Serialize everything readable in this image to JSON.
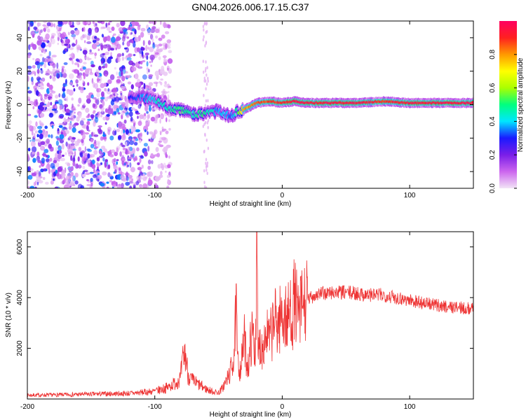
{
  "title": "GN04.2026.006.17.15.C37",
  "chart_data": [
    {
      "type": "heatmap",
      "title": "GN04.2026.006.17.15.C37",
      "xlabel": "Height of straight line (km)",
      "ylabel": "Frequency (Hz)",
      "xlim": [
        -200,
        150
      ],
      "ylim": [
        -50,
        50
      ],
      "xticks": [
        -200,
        -100,
        0,
        100
      ],
      "yticks": [
        -40,
        -20,
        0,
        20,
        40
      ],
      "colorbar": {
        "label": "Normalized spectral amplitude",
        "range": [
          0,
          1
        ],
        "ticks": [
          "0.0",
          "0.2",
          "0.4",
          "0.6",
          "0.8"
        ],
        "tick_values": [
          0,
          0.2,
          0.4,
          0.6,
          0.8
        ],
        "colors": [
          "#f2e4f6",
          "#cc66ee",
          "#7a1ee8",
          "#1a1aff",
          "#00e6ff",
          "#00ff7f",
          "#aaff00",
          "#ffff00",
          "#ff9900",
          "#ff2020",
          "#ff0060"
        ]
      },
      "ridge": {
        "x": [
          -120,
          -110,
          -100,
          -90,
          -80,
          -70,
          -60,
          -50,
          -45,
          -40,
          -35,
          -30,
          -20,
          -10,
          0,
          10,
          20,
          40,
          60,
          80,
          100,
          120,
          150
        ],
        "freq": [
          5,
          4,
          3,
          -2,
          -3,
          -6,
          -5,
          -4,
          -6,
          -7,
          -4,
          -3,
          1,
          2,
          1,
          2,
          1,
          1,
          1,
          2,
          1,
          1,
          1
        ],
        "amplitude": [
          0.25,
          0.35,
          0.4,
          0.45,
          0.5,
          0.45,
          0.5,
          0.35,
          0.4,
          0.35,
          0.5,
          0.8,
          0.85,
          0.9,
          0.9,
          0.95,
          0.95,
          0.95,
          0.95,
          0.9,
          0.95,
          0.95,
          0.95
        ]
      },
      "noise_region_x": [
        -200,
        -100
      ]
    },
    {
      "type": "line",
      "xlabel": "Height of straight line (km)",
      "ylabel": "SNR (10 * v/v)",
      "xlim": [
        -200,
        150
      ],
      "ylim": [
        0,
        6600
      ],
      "xticks": [
        -200,
        -100,
        0,
        100
      ],
      "yticks": [
        2000,
        4000,
        6000
      ],
      "line_color": "#ee3333",
      "series": [
        {
          "name": "SNR",
          "x": [
            -200,
            -180,
            -160,
            -140,
            -120,
            -100,
            -90,
            -85,
            -80,
            -78,
            -76,
            -74,
            -72,
            -70,
            -65,
            -60,
            -55,
            -50,
            -48,
            -45,
            -42,
            -40,
            -38,
            -36,
            -35,
            -33,
            -31,
            -30,
            -28,
            -26,
            -25,
            -23,
            -21,
            -20,
            -19,
            -18,
            -16,
            -14,
            -12,
            -10,
            -8,
            -6,
            -4,
            -2,
            0,
            2,
            4,
            6,
            8,
            10,
            12,
            14,
            16,
            18,
            20,
            25,
            30,
            40,
            50,
            60,
            70,
            80,
            90,
            100,
            110,
            120,
            130,
            140,
            150
          ],
          "y": [
            150,
            160,
            180,
            200,
            220,
            300,
            450,
            600,
            800,
            1500,
            1800,
            1000,
            800,
            700,
            550,
            400,
            300,
            250,
            350,
            600,
            900,
            1200,
            1700,
            3500,
            1400,
            1200,
            1800,
            2500,
            1500,
            1300,
            2200,
            2600,
            1800,
            6600,
            1500,
            2200,
            2000,
            2400,
            2600,
            2300,
            2700,
            3200,
            2900,
            3100,
            3400,
            3300,
            3000,
            3500,
            3400,
            4100,
            3200,
            3400,
            3800,
            3700,
            3900,
            4100,
            4150,
            4200,
            4200,
            4150,
            4100,
            4100,
            4000,
            3900,
            3800,
            3700,
            3650,
            3600,
            3550
          ]
        }
      ]
    }
  ]
}
